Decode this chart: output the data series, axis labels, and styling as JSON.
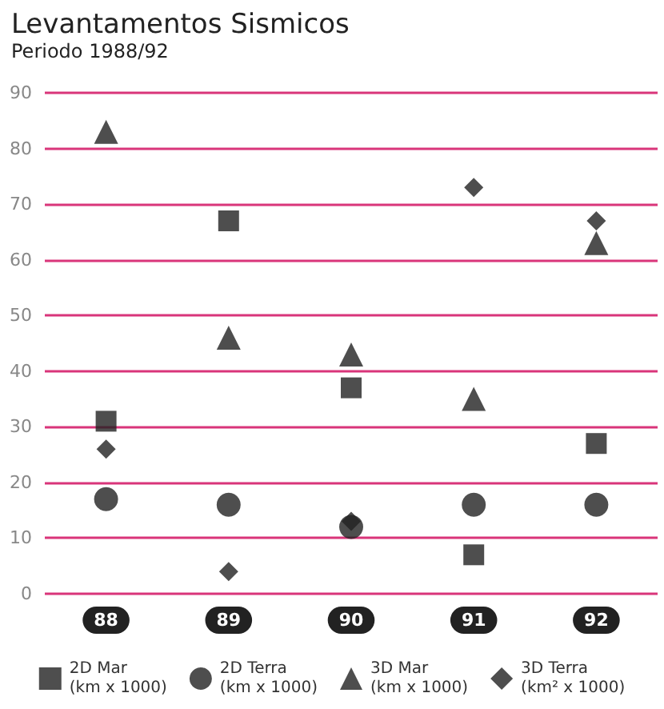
{
  "chart_data": {
    "type": "scatter",
    "title": "Levantamentos Sismicos",
    "subtitle": "Periodo 1988/92",
    "categories": [
      "88",
      "89",
      "90",
      "91",
      "92"
    ],
    "series": [
      {
        "name": "2D Mar\n(km x 1000)",
        "color": "#222222",
        "marker": "square",
        "values": [
          31,
          67,
          37,
          7,
          27
        ]
      },
      {
        "name": "2D Terra\n(km x 1000)",
        "color": "#222222",
        "marker": "circle",
        "values": [
          17,
          16,
          12,
          16,
          16
        ]
      },
      {
        "name": "3D Mar\n(km x 1000)",
        "color": "#222222",
        "marker": "triangle",
        "values": [
          83,
          46,
          43,
          35,
          63
        ]
      },
      {
        "name": "3D Terra\n(km² x 1000)",
        "color": "#222222",
        "marker": "diamond",
        "values": [
          26,
          4,
          13,
          73,
          67
        ]
      }
    ],
    "ylim": [
      0,
      90
    ],
    "yticks": [
      0,
      10,
      20,
      30,
      40,
      50,
      60,
      70,
      80,
      90
    ],
    "grid": "y",
    "legend": "bottom"
  }
}
